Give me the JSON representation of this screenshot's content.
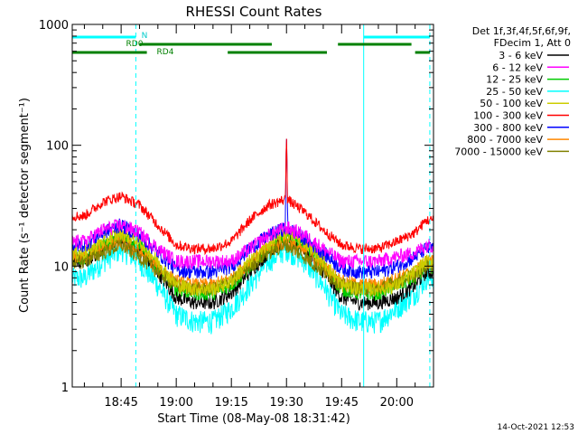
{
  "chart_data": {
    "type": "line",
    "title": "RHESSI Count Rates",
    "xlabel": "Start Time (08-May-08 18:31:42)",
    "ylabel": "Count Rate (s⁻¹ detector segment⁻¹)",
    "y_scale": "log",
    "ylim": [
      1,
      1000
    ],
    "y_ticks": [
      "1",
      "10",
      "100",
      "1000"
    ],
    "x_range": [
      "18:31:42",
      "20:10:00"
    ],
    "x_ticks": [
      "18:45",
      "19:00",
      "19:15",
      "19:30",
      "19:45",
      "20:00"
    ],
    "legend_header": [
      "Det 1f,3f,4f,5f,6f,9f,",
      "FDecim 1, Att 0"
    ],
    "legend_placement": "right",
    "x": [
      "18:35",
      "18:40",
      "18:45",
      "18:50",
      "18:55",
      "19:00",
      "19:05",
      "19:10",
      "19:15",
      "19:20",
      "19:25",
      "19:30",
      "19:35",
      "19:40",
      "19:45",
      "19:50",
      "19:55",
      "20:00",
      "20:05",
      "20:08"
    ],
    "series": [
      {
        "name": "3 - 6 keV",
        "color": "#000000",
        "values": [
          11,
          14,
          17,
          14,
          9,
          5.5,
          5,
          5,
          6,
          9,
          13,
          17,
          14,
          9,
          5.5,
          5,
          5,
          5.5,
          7,
          9
        ]
      },
      {
        "name": "6 - 12 keV",
        "color": "#ff00ff",
        "values": [
          16,
          20,
          22,
          19,
          14,
          11,
          11,
          11,
          11,
          14,
          18,
          21,
          18,
          14,
          11,
          11,
          11,
          12,
          13,
          15
        ]
      },
      {
        "name": "12 - 25 keV",
        "color": "#00cc00",
        "values": [
          12,
          15,
          18,
          15,
          10,
          6.5,
          6,
          6,
          7,
          10,
          14,
          18,
          15,
          10,
          6.5,
          6,
          6,
          7,
          8,
          10
        ]
      },
      {
        "name": "25 - 50 keV",
        "color": "#00ffff",
        "values": [
          8,
          11,
          14,
          11,
          7,
          4,
          3.5,
          3.5,
          4.5,
          7,
          11,
          14,
          11,
          7,
          4,
          3.5,
          3.5,
          4.5,
          6,
          8
        ]
      },
      {
        "name": "50 - 100 keV",
        "color": "#cccc00",
        "values": [
          13,
          16,
          19,
          16,
          11,
          7,
          6.5,
          6.5,
          7.5,
          11,
          15,
          19,
          16,
          11,
          7,
          6.5,
          6.5,
          7,
          9,
          11
        ]
      },
      {
        "name": "100 - 300 keV",
        "color": "#ff0000",
        "values": [
          26,
          34,
          38,
          32,
          22,
          15,
          14,
          14,
          16,
          24,
          32,
          36,
          28,
          20,
          15,
          14,
          14,
          16,
          19,
          24
        ]
      },
      {
        "name": "300 - 800 keV",
        "color": "#0000ff",
        "values": [
          15,
          19,
          22,
          18,
          13,
          9.5,
          9,
          9,
          10,
          14,
          18,
          21,
          17,
          13,
          9.5,
          9,
          9,
          10,
          12,
          14
        ]
      },
      {
        "name": "800 - 7000 keV",
        "color": "#ff8800",
        "values": [
          12,
          14,
          16,
          13,
          10,
          7.5,
          7,
          7,
          8,
          11,
          14,
          16,
          13,
          10,
          7.5,
          7,
          7,
          8,
          9,
          11
        ]
      },
      {
        "name": "7000 - 15000 keV",
        "color": "#808000",
        "values": [
          11,
          13,
          15,
          12,
          9,
          7,
          6.5,
          6.5,
          7.5,
          10,
          13,
          15,
          12,
          9,
          7,
          6.5,
          6.5,
          7.5,
          8.5,
          10
        ]
      }
    ],
    "spike": {
      "time": "19:30",
      "peak": 120
    },
    "vertical_markers": [
      {
        "time": "18:31:42",
        "color": "#00ffff",
        "style": "solid"
      },
      {
        "time": "18:49",
        "color": "#00ffff",
        "style": "dashed"
      },
      {
        "time": "19:51",
        "color": "#00ffff",
        "style": "solid"
      },
      {
        "time": "20:09",
        "color": "#00ffff",
        "style": "dashed"
      }
    ],
    "flag_bars": [
      {
        "label": "N",
        "color": "#00ffff",
        "segments": [
          [
            "18:31:42",
            "18:49"
          ],
          [
            "19:51",
            "20:09"
          ]
        ]
      },
      {
        "label": "RD0",
        "color": "#008000",
        "segments": [
          [
            "18:50",
            "19:26"
          ],
          [
            "19:44",
            "20:04"
          ]
        ]
      },
      {
        "label": "RD4",
        "color": "#008000",
        "segments": [
          [
            "18:31:42",
            "18:52"
          ],
          [
            "19:14",
            "19:41"
          ],
          [
            "20:05",
            "20:09"
          ]
        ]
      }
    ]
  },
  "timestamp": "14-Oct-2021 12:53"
}
